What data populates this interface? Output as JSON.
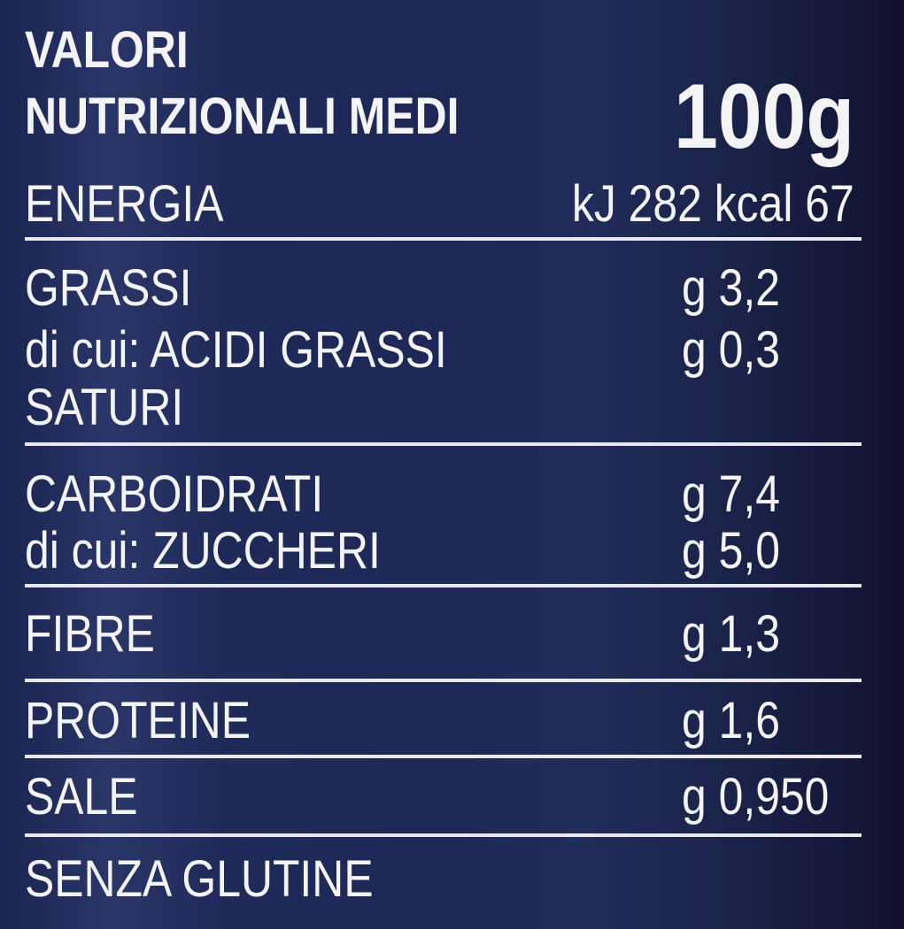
{
  "header": {
    "line1": "VALORI",
    "line2": "NUTRIZIONALI MEDI",
    "per": "100g"
  },
  "rows": [
    {
      "label": "ENERGIA",
      "value": "kJ 282 kcal 67"
    },
    {
      "label": "GRASSI",
      "value": "g 3,2"
    },
    {
      "label": "di cui: ACIDI GRASSI",
      "label2": "SATURI",
      "value": "g 0,3"
    },
    {
      "label": "CARBOIDRATI",
      "value": "g 7,4"
    },
    {
      "label": "di cui: ZUCCHERI",
      "value": "g 5,0"
    },
    {
      "label": "FIBRE",
      "value": "g 1,3"
    },
    {
      "label": "PROTEINE",
      "value": "g 1,6"
    },
    {
      "label": "SALE",
      "value": "g 0,950"
    }
  ],
  "footer": "SENZA GLUTINE"
}
